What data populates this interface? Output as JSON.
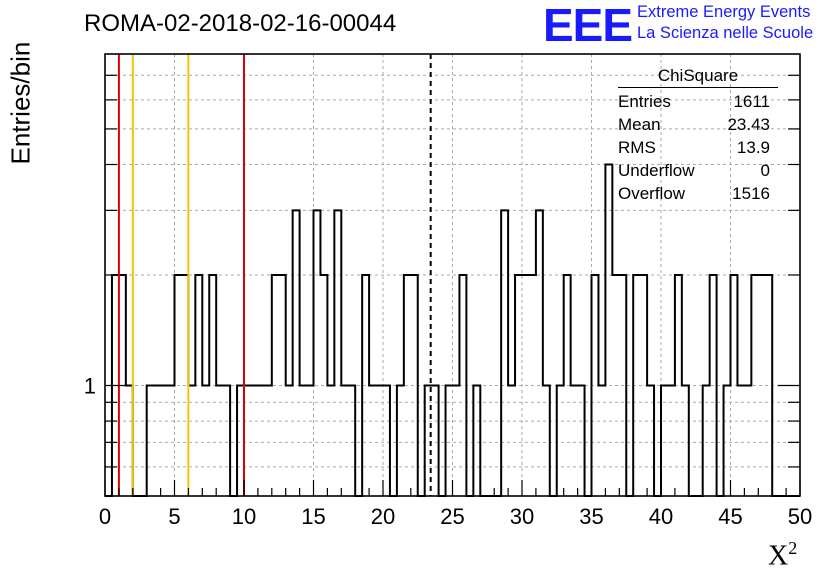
{
  "title": "ROMA-02-2018-02-16-00044",
  "logo": {
    "mark": "EEE",
    "line1": "Extreme Energy Events",
    "line2": "La Scienza nelle Scuole",
    "color": "#1a1aff"
  },
  "stats": {
    "name": "ChiSquare",
    "rows": [
      {
        "label": "Entries",
        "value": "1611"
      },
      {
        "label": "Mean",
        "value": "23.43"
      },
      {
        "label": "RMS",
        "value": "13.9"
      },
      {
        "label": "Underflow",
        "value": "0"
      },
      {
        "label": "Overflow",
        "value": "1516"
      }
    ]
  },
  "chart_data": {
    "type": "histogram",
    "title": "ROMA-02-2018-02-16-00044",
    "xlabel": "X²",
    "ylabel": "Entries/bin",
    "xlim": [
      0,
      50
    ],
    "ylog": true,
    "ylim": [
      0.5,
      8
    ],
    "yticks": [
      {
        "value": 1,
        "label": "1"
      }
    ],
    "xticks": [
      0,
      5,
      10,
      15,
      20,
      25,
      30,
      35,
      40,
      45,
      50
    ],
    "grid": true,
    "bin_width": 0.5,
    "bins": [
      {
        "x": 0.5,
        "y": 2
      },
      {
        "x": 1.0,
        "y": 2
      },
      {
        "x": 1.5,
        "y": 1
      },
      {
        "x": 3.0,
        "y": 1
      },
      {
        "x": 3.5,
        "y": 1
      },
      {
        "x": 4.0,
        "y": 1
      },
      {
        "x": 4.5,
        "y": 1
      },
      {
        "x": 5.0,
        "y": 2
      },
      {
        "x": 5.5,
        "y": 2
      },
      {
        "x": 6.0,
        "y": 1
      },
      {
        "x": 6.5,
        "y": 2
      },
      {
        "x": 7.0,
        "y": 1
      },
      {
        "x": 7.5,
        "y": 2
      },
      {
        "x": 8.0,
        "y": 1
      },
      {
        "x": 8.5,
        "y": 1
      },
      {
        "x": 9.5,
        "y": 1
      },
      {
        "x": 10.0,
        "y": 1
      },
      {
        "x": 10.5,
        "y": 1
      },
      {
        "x": 11.0,
        "y": 1
      },
      {
        "x": 11.5,
        "y": 1
      },
      {
        "x": 12.0,
        "y": 2
      },
      {
        "x": 12.5,
        "y": 2
      },
      {
        "x": 13.0,
        "y": 1
      },
      {
        "x": 13.5,
        "y": 3
      },
      {
        "x": 14.0,
        "y": 1
      },
      {
        "x": 14.5,
        "y": 1
      },
      {
        "x": 15.0,
        "y": 3
      },
      {
        "x": 15.5,
        "y": 2
      },
      {
        "x": 16.0,
        "y": 1
      },
      {
        "x": 16.5,
        "y": 3
      },
      {
        "x": 17.0,
        "y": 1
      },
      {
        "x": 17.5,
        "y": 1
      },
      {
        "x": 18.5,
        "y": 2
      },
      {
        "x": 19.0,
        "y": 1
      },
      {
        "x": 19.5,
        "y": 1
      },
      {
        "x": 20.0,
        "y": 1
      },
      {
        "x": 21.0,
        "y": 1
      },
      {
        "x": 21.5,
        "y": 2
      },
      {
        "x": 22.0,
        "y": 2
      },
      {
        "x": 23.0,
        "y": 1
      },
      {
        "x": 23.5,
        "y": 1
      },
      {
        "x": 24.5,
        "y": 1
      },
      {
        "x": 25.0,
        "y": 1
      },
      {
        "x": 25.5,
        "y": 2
      },
      {
        "x": 26.5,
        "y": 1
      },
      {
        "x": 28.5,
        "y": 3
      },
      {
        "x": 29.0,
        "y": 1
      },
      {
        "x": 29.5,
        "y": 2
      },
      {
        "x": 30.0,
        "y": 2
      },
      {
        "x": 30.5,
        "y": 2
      },
      {
        "x": 31.0,
        "y": 3
      },
      {
        "x": 31.5,
        "y": 1
      },
      {
        "x": 32.5,
        "y": 1
      },
      {
        "x": 33.0,
        "y": 2
      },
      {
        "x": 33.5,
        "y": 1
      },
      {
        "x": 34.0,
        "y": 1
      },
      {
        "x": 35.0,
        "y": 2
      },
      {
        "x": 35.5,
        "y": 1
      },
      {
        "x": 36.0,
        "y": 4
      },
      {
        "x": 36.5,
        "y": 2
      },
      {
        "x": 37.0,
        "y": 2
      },
      {
        "x": 38.0,
        "y": 2
      },
      {
        "x": 38.5,
        "y": 2
      },
      {
        "x": 39.0,
        "y": 1
      },
      {
        "x": 40.0,
        "y": 1
      },
      {
        "x": 40.5,
        "y": 1
      },
      {
        "x": 41.0,
        "y": 2
      },
      {
        "x": 41.5,
        "y": 1
      },
      {
        "x": 43.0,
        "y": 1
      },
      {
        "x": 43.5,
        "y": 2
      },
      {
        "x": 44.5,
        "y": 1
      },
      {
        "x": 45.0,
        "y": 2
      },
      {
        "x": 45.5,
        "y": 1
      },
      {
        "x": 46.0,
        "y": 1
      },
      {
        "x": 46.5,
        "y": 2
      },
      {
        "x": 47.0,
        "y": 2
      },
      {
        "x": 47.5,
        "y": 2
      }
    ],
    "vlines": [
      {
        "x": 1.0,
        "color": "#dd0000",
        "style": "solid"
      },
      {
        "x": 2.0,
        "color": "#f2c500",
        "style": "solid"
      },
      {
        "x": 6.0,
        "color": "#f2c500",
        "style": "solid"
      },
      {
        "x": 10.0,
        "color": "#dd0000",
        "style": "solid"
      },
      {
        "x": 23.43,
        "color": "#000000",
        "style": "dashed"
      }
    ]
  }
}
